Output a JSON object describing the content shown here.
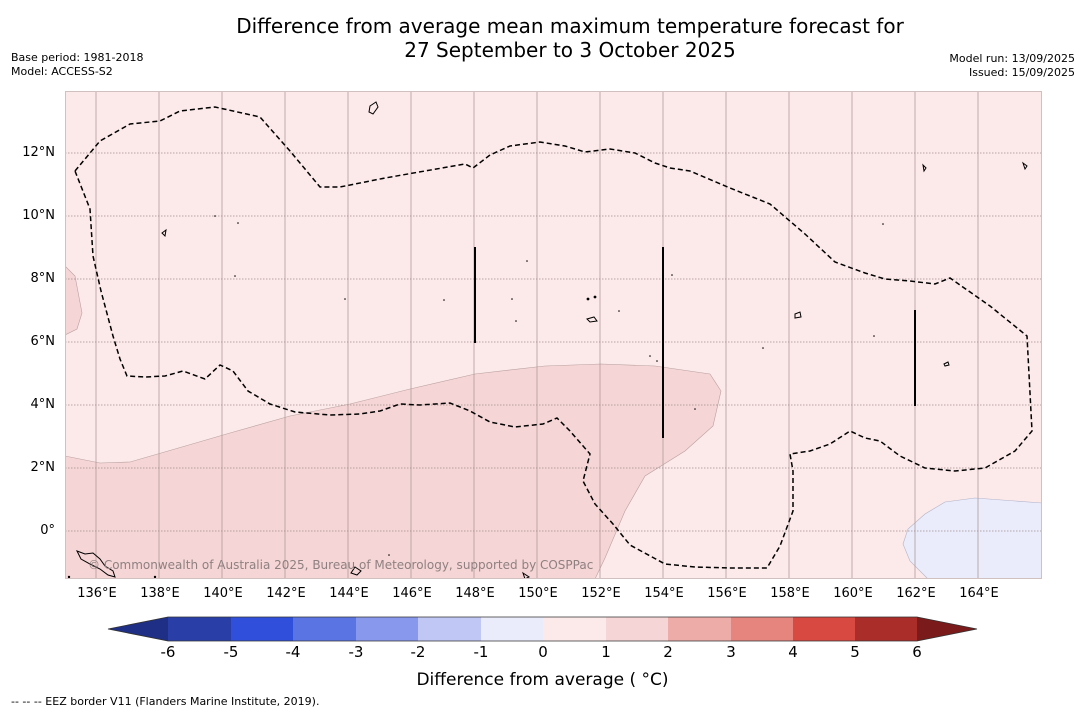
{
  "title": {
    "line1": "Difference from average mean maximum temperature forecast for",
    "line2": "27 September to 3 October 2025"
  },
  "meta_left": {
    "base_period": "Base period: 1981-2018",
    "model": "Model: ACCESS-S2"
  },
  "meta_right": {
    "model_run": "Model run: 13/09/2025",
    "issued": "Issued: 15/09/2025"
  },
  "map": {
    "latitude_labels": [
      "12°N",
      "10°N",
      "8°N",
      "6°N",
      "4°N",
      "2°N",
      "0°"
    ],
    "longitude_labels": [
      "136°E",
      "138°E",
      "140°E",
      "142°E",
      "144°E",
      "146°E",
      "148°E",
      "150°E",
      "152°E",
      "154°E",
      "156°E",
      "158°E",
      "160°E",
      "162°E",
      "164°E"
    ],
    "watermark": "© Commonwealth of Australia 2025, Bureau of Meteorology, supported by COSPPac",
    "colors": {
      "background_band": "#fce9e9",
      "band_1_to_2": "#f5d5d5",
      "band_minus1_to_0": "#eaecfb",
      "eez_line": "#000000"
    }
  },
  "colorbar": {
    "tick_labels": [
      "-6",
      "-5",
      "-4",
      "-3",
      "-2",
      "-1",
      "0",
      "1",
      "2",
      "3",
      "4",
      "5",
      "6"
    ],
    "colors": [
      "#2a3ea8",
      "#3050db",
      "#5a74e4",
      "#8898ec",
      "#c0c7f5",
      "#eaecfb",
      "#fce9e9",
      "#f5d5d5",
      "#eeaca8",
      "#e6857e",
      "#d84942",
      "#aa2d2a"
    ],
    "extend_low_color": "#1f2f85",
    "extend_high_color": "#7a1a1a",
    "title": "Difference from average ( °C)"
  },
  "footnote": "--  --  -- EEZ border V11 (Flanders Marine Institute, 2019)."
}
